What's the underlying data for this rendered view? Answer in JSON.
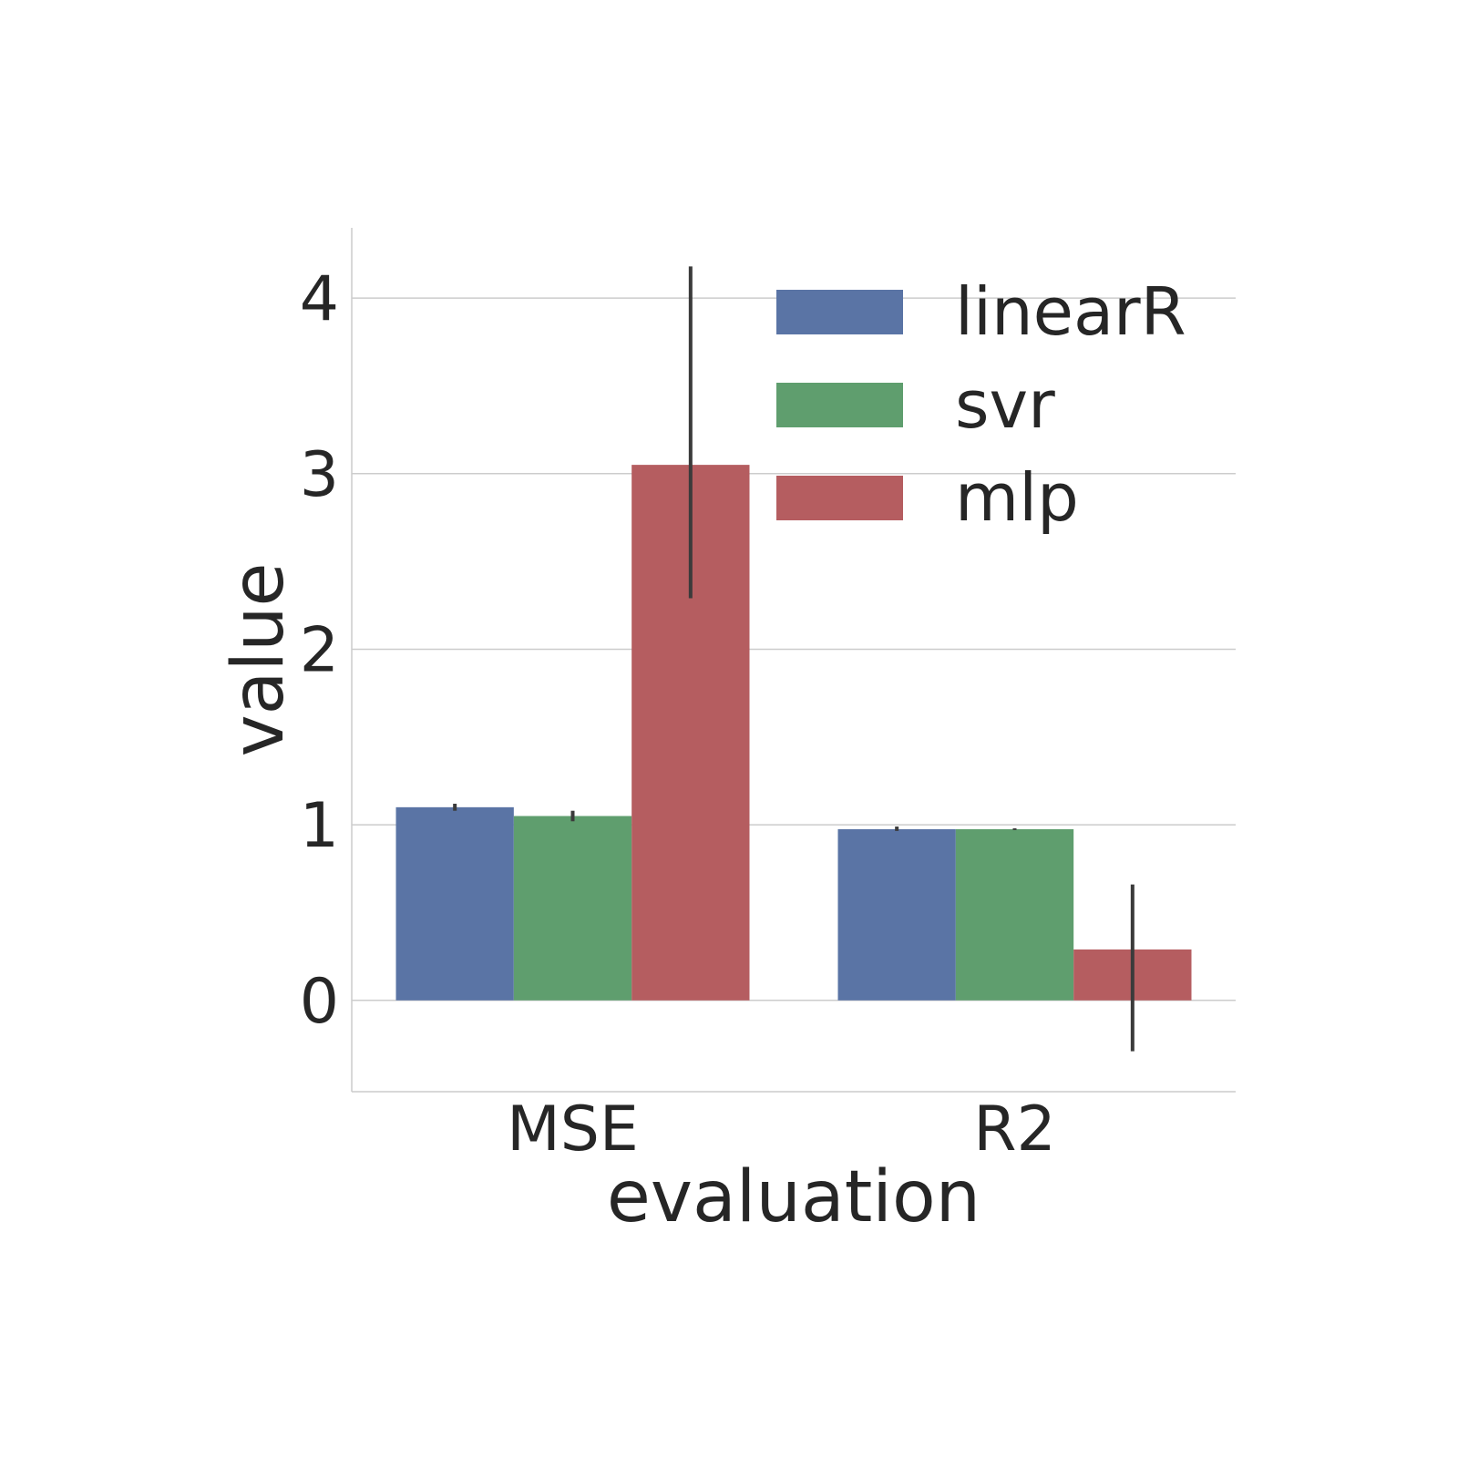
{
  "chart_data": {
    "type": "bar",
    "title": "",
    "xlabel": "evaluation",
    "ylabel": "value",
    "categories": [
      "MSE",
      "R2"
    ],
    "ylim": [
      -0.52,
      4.4
    ],
    "yticks": [
      0,
      1,
      2,
      3,
      4
    ],
    "grid": true,
    "legend_position": "top-right",
    "series": [
      {
        "name": "linearR",
        "color": "#5a74a5",
        "values": [
          1.1,
          0.975
        ],
        "error_low": [
          1.08,
          0.965
        ],
        "error_high": [
          1.12,
          0.99
        ]
      },
      {
        "name": "svr",
        "color": "#5f9e6e",
        "values": [
          1.05,
          0.975
        ],
        "error_low": [
          1.02,
          0.97
        ],
        "error_high": [
          1.08,
          0.98
        ]
      },
      {
        "name": "mlp",
        "color": "#b55d60",
        "values": [
          3.05,
          0.29
        ],
        "error_low": [
          2.29,
          -0.29
        ],
        "error_high": [
          4.18,
          0.66
        ]
      }
    ]
  }
}
